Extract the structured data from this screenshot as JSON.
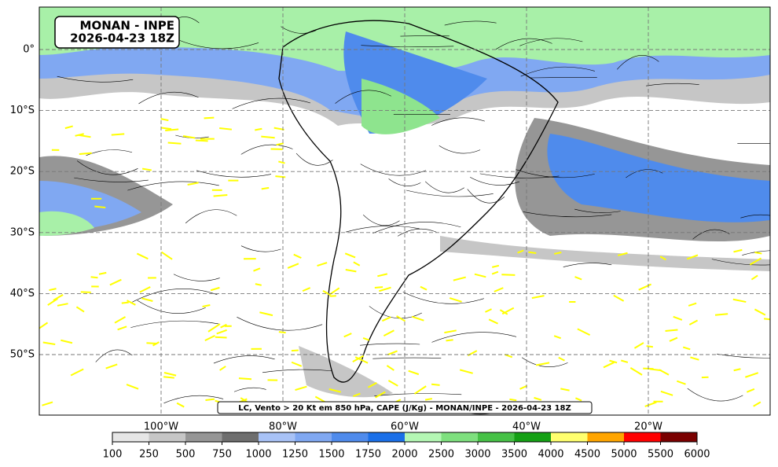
{
  "title": {
    "lines": [
      "MONAN - INPE",
      "2026-04-23 18Z"
    ]
  },
  "caption": "LC, Vento > 20 Kt em 850 hPa, CAPE (J/Kg) - MONAN/INPE - 2026-04-23 18Z",
  "lat_labels": [
    "0°",
    "10°S",
    "20°S",
    "30°S",
    "40°S",
    "50°S"
  ],
  "lon_labels": [
    "100°W",
    "80°W",
    "60°W",
    "40°W",
    "20°W"
  ],
  "colorbar": {
    "ticks": [
      100,
      250,
      500,
      750,
      1000,
      1250,
      1500,
      1750,
      2000,
      2500,
      3000,
      3500,
      4000,
      4500,
      5000,
      5500,
      6000
    ],
    "colors": [
      "#e6e6e6",
      "#c6c6c6",
      "#969696",
      "#6e6e6e",
      "#a8c2f6",
      "#80a8f2",
      "#4f8bec",
      "#1a6fe8",
      "#b4f7b4",
      "#7ee07e",
      "#46c146",
      "#14a014",
      "#ffff6e",
      "#ffa500",
      "#ff0000",
      "#7a0000"
    ]
  }
}
